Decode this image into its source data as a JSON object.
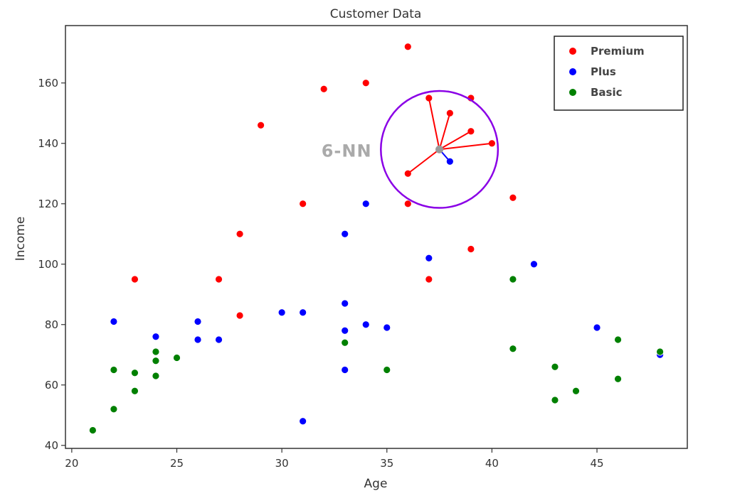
{
  "chart_data": {
    "type": "scatter",
    "title": "Customer Data",
    "xlabel": "Age",
    "ylabel": "Income",
    "xlim": [
      19.7,
      49.3
    ],
    "ylim": [
      39,
      179
    ],
    "xticks": [
      20,
      25,
      30,
      35,
      40,
      45
    ],
    "yticks": [
      40,
      60,
      80,
      100,
      120,
      140,
      160
    ],
    "grid": false,
    "legend_position": "top-right",
    "series": [
      {
        "name": "Premium",
        "color": "#ff0000",
        "points": [
          [
            23,
            95
          ],
          [
            27,
            95
          ],
          [
            28,
            83
          ],
          [
            28,
            110
          ],
          [
            29,
            146
          ],
          [
            31,
            120
          ],
          [
            32,
            158
          ],
          [
            34,
            160
          ],
          [
            36,
            172
          ],
          [
            36,
            130
          ],
          [
            36,
            120
          ],
          [
            37,
            155
          ],
          [
            37,
            95
          ],
          [
            38,
            150
          ],
          [
            39,
            155
          ],
          [
            39,
            144
          ],
          [
            39,
            105
          ],
          [
            40,
            140
          ],
          [
            41,
            122
          ]
        ]
      },
      {
        "name": "Plus",
        "color": "#0000ff",
        "points": [
          [
            22,
            81
          ],
          [
            24,
            76
          ],
          [
            26,
            81
          ],
          [
            26,
            75
          ],
          [
            27,
            75
          ],
          [
            30,
            84
          ],
          [
            31,
            84
          ],
          [
            31,
            48
          ],
          [
            33,
            110
          ],
          [
            33,
            87
          ],
          [
            33,
            78
          ],
          [
            33,
            65
          ],
          [
            34,
            120
          ],
          [
            34,
            80
          ],
          [
            35,
            79
          ],
          [
            37,
            102
          ],
          [
            38,
            134
          ],
          [
            42,
            100
          ],
          [
            45,
            79
          ],
          [
            48,
            70
          ]
        ]
      },
      {
        "name": "Basic",
        "color": "#008000",
        "points": [
          [
            21,
            45
          ],
          [
            22,
            65
          ],
          [
            22,
            52
          ],
          [
            23,
            64
          ],
          [
            23,
            58
          ],
          [
            24,
            71
          ],
          [
            24,
            68
          ],
          [
            24,
            63
          ],
          [
            25,
            69
          ],
          [
            33,
            74
          ],
          [
            35,
            65
          ],
          [
            41,
            95
          ],
          [
            41,
            72
          ],
          [
            43,
            66
          ],
          [
            43,
            55
          ],
          [
            44,
            58
          ],
          [
            46,
            75
          ],
          [
            46,
            62
          ],
          [
            48,
            71
          ]
        ]
      }
    ],
    "annotation": {
      "label": "6-NN",
      "query_point": [
        37.5,
        138
      ],
      "query_color": "#999999",
      "circle_color": "#8a00e6",
      "neighbors": [
        {
          "point": [
            36,
            130
          ],
          "color": "#ff0000"
        },
        {
          "point": [
            37,
            155
          ],
          "color": "#ff0000"
        },
        {
          "point": [
            38,
            150
          ],
          "color": "#ff0000"
        },
        {
          "point": [
            39,
            144
          ],
          "color": "#ff0000"
        },
        {
          "point": [
            40,
            140
          ],
          "color": "#ff0000"
        },
        {
          "point": [
            38,
            134
          ],
          "color": "#0000ff"
        }
      ]
    }
  }
}
